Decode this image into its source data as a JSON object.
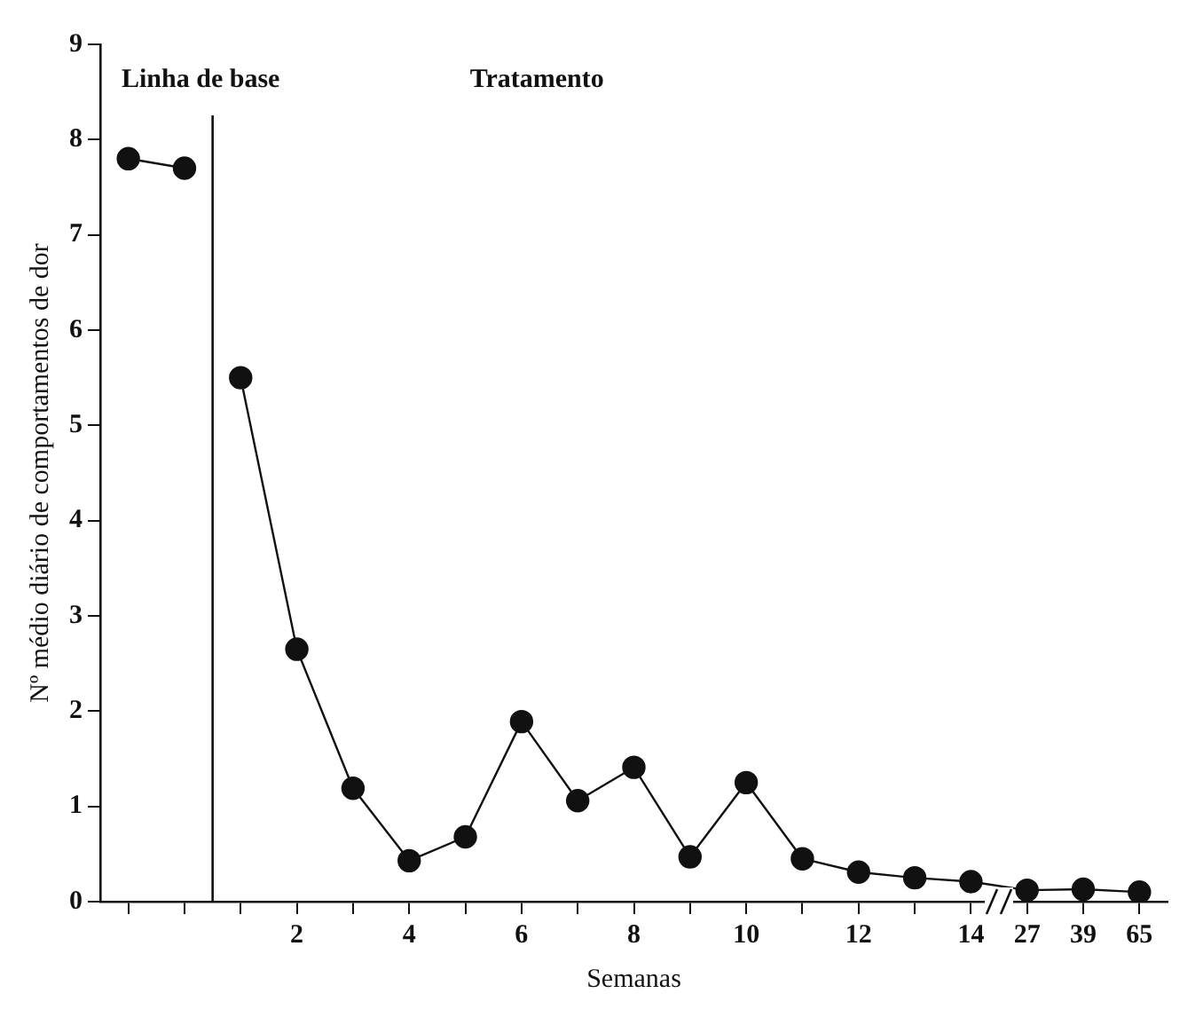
{
  "chart_data": {
    "type": "line",
    "xlabel": "Semanas",
    "ylabel": "Nº médio diário de comportamentos de dor",
    "categories": [
      null,
      null,
      null,
      "2",
      null,
      "4",
      null,
      "6",
      null,
      "8",
      null,
      "10",
      null,
      "12",
      null,
      "14",
      "27",
      "39",
      "65"
    ],
    "series": [
      {
        "color": "#111111",
        "values": [
          7.8,
          7.7,
          null,
          null,
          null,
          null,
          null,
          null,
          null,
          null,
          null,
          null,
          null,
          null,
          null,
          null,
          null,
          null,
          null
        ]
      },
      {
        "color": "#111111",
        "values": [
          null,
          null,
          5.5,
          2.65,
          1.19,
          0.43,
          0.68,
          1.89,
          1.06,
          1.41,
          0.47,
          1.25,
          0.45,
          0.31,
          0.25,
          0.21,
          0.12,
          0.13,
          0.1
        ]
      }
    ],
    "ylim": [
      0,
      9
    ],
    "yticks": [
      0,
      1,
      2,
      3,
      4,
      5,
      6,
      7,
      8,
      9
    ],
    "grid": false,
    "legend": false,
    "marker": "circle",
    "line_style": "solid",
    "annotations": [
      "Linha de base",
      "Tratamento"
    ]
  }
}
